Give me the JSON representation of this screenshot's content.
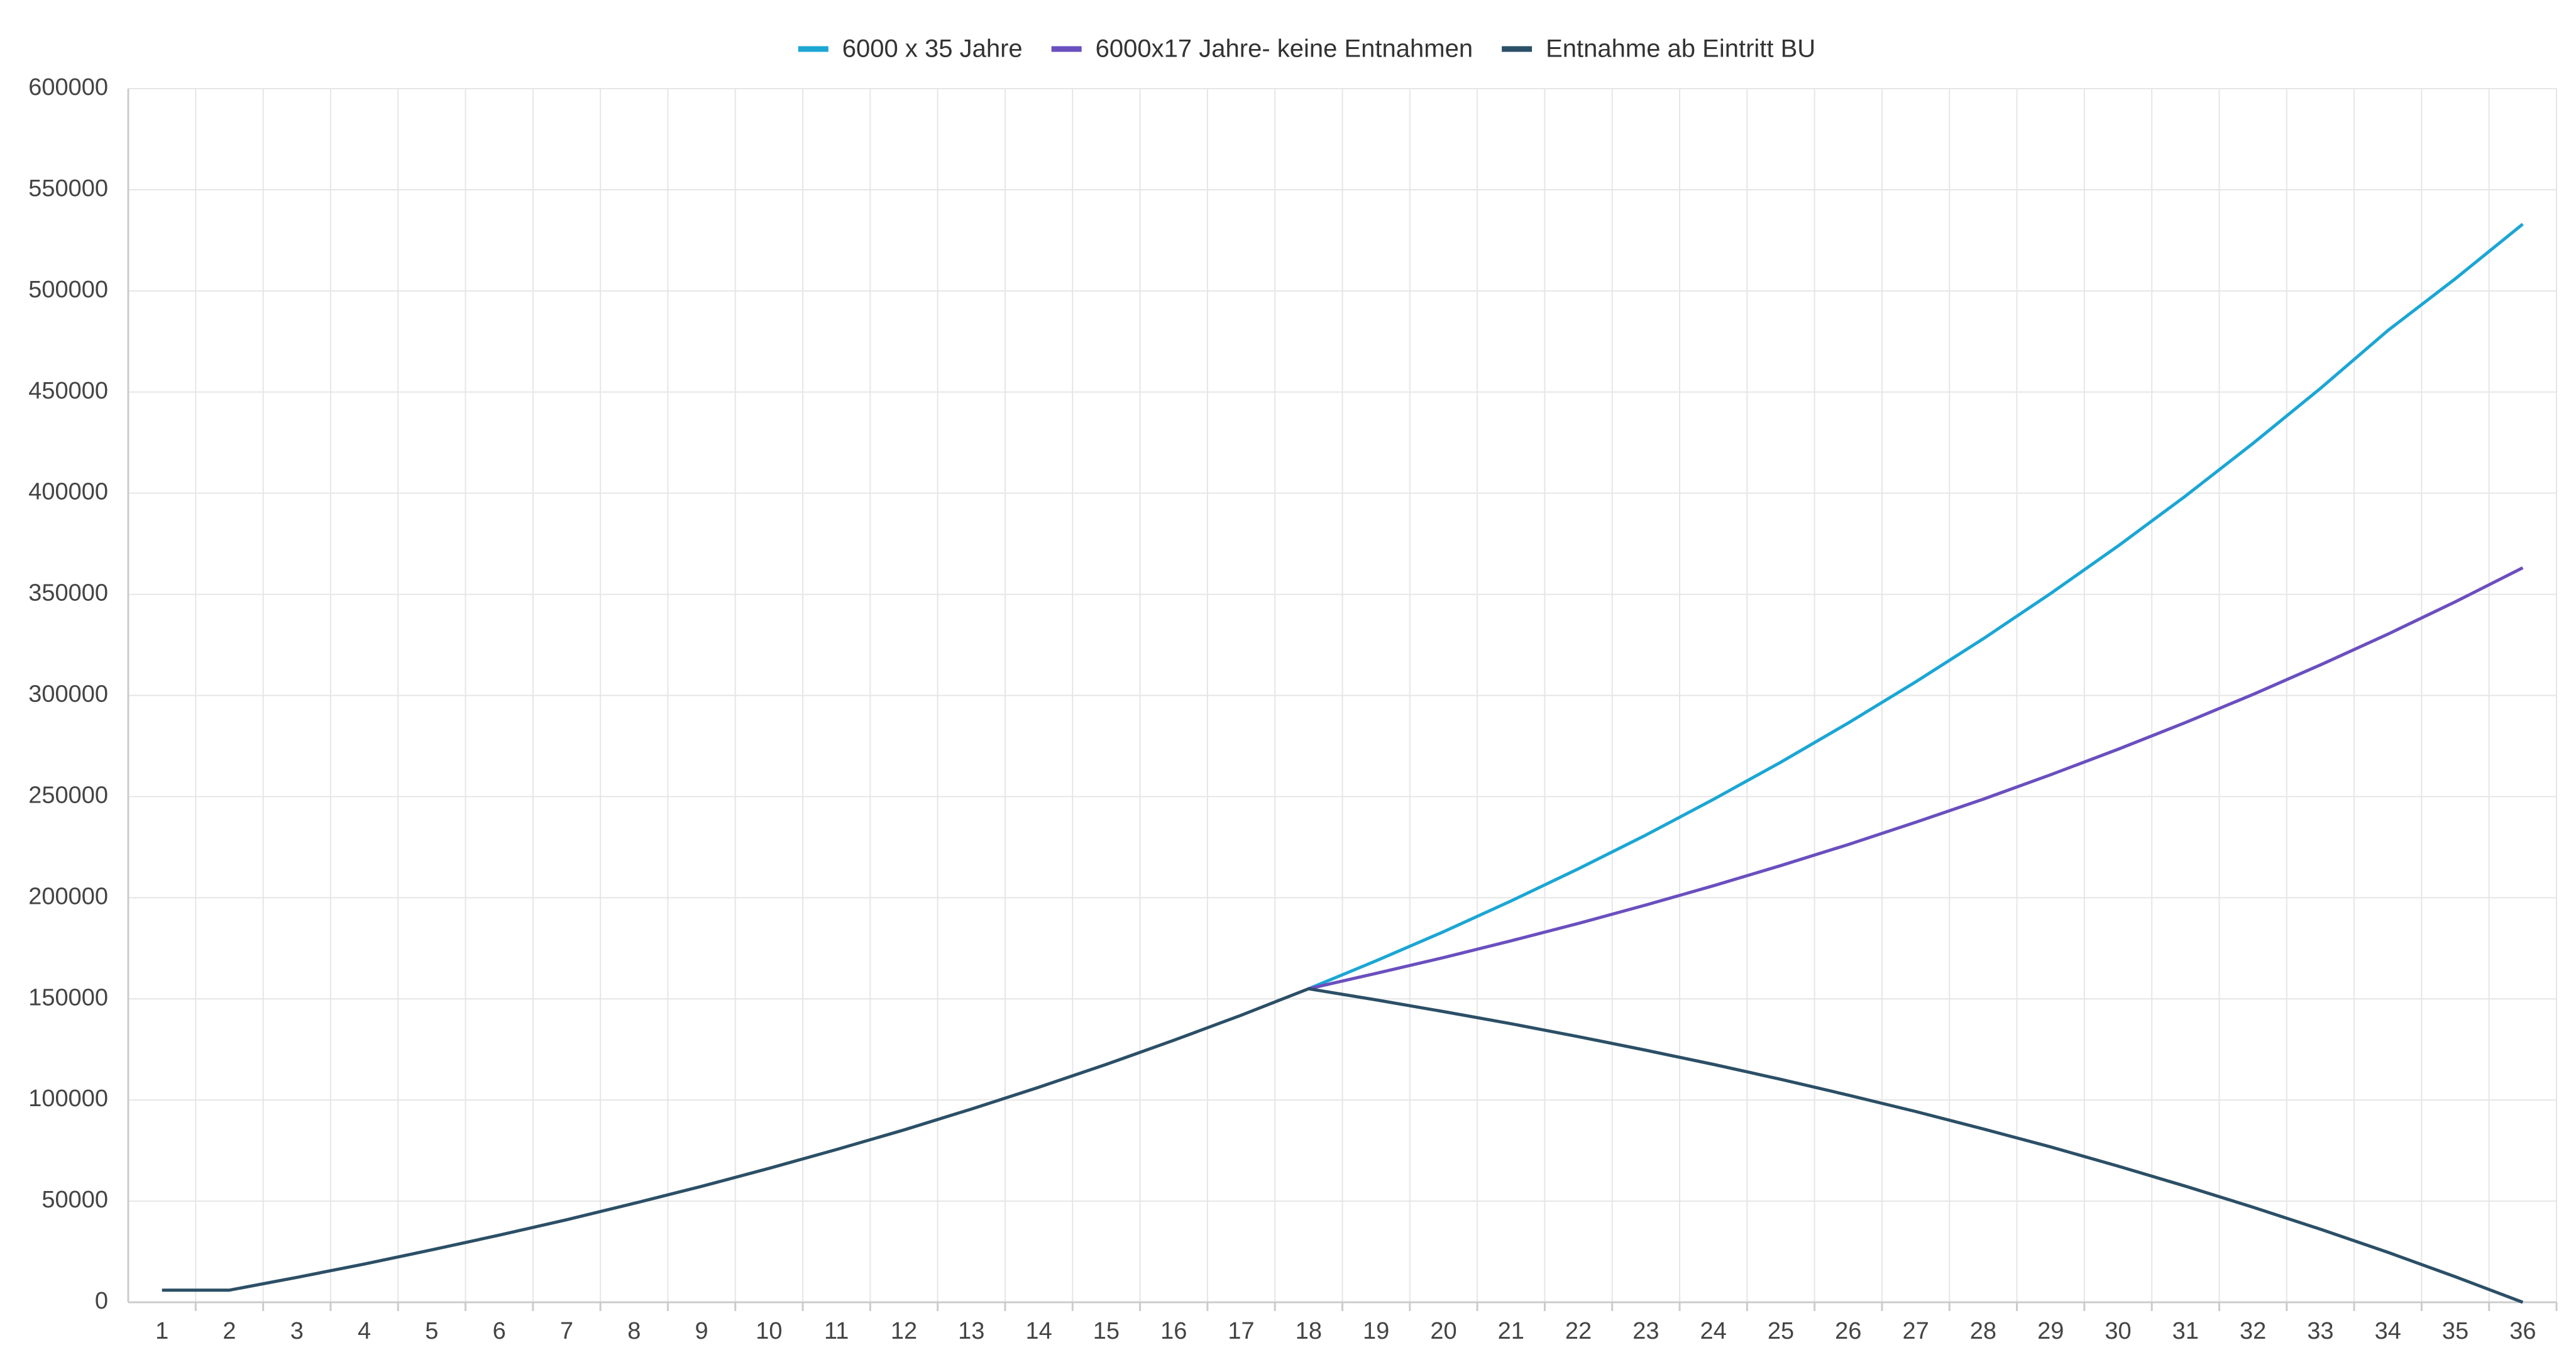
{
  "chart_data": {
    "type": "line",
    "categories": [
      "1",
      "2",
      "3",
      "4",
      "5",
      "6",
      "7",
      "8",
      "9",
      "10",
      "11",
      "12",
      "13",
      "14",
      "15",
      "16",
      "17",
      "18",
      "19",
      "20",
      "21",
      "22",
      "23",
      "24",
      "25",
      "26",
      "27",
      "28",
      "29",
      "30",
      "31",
      "32",
      "33",
      "34",
      "35",
      "36"
    ],
    "series": [
      {
        "name": "6000 x 35 Jahre",
        "color": "#1ba6d4",
        "values": [
          null,
          null,
          null,
          null,
          null,
          null,
          null,
          null,
          null,
          null,
          null,
          null,
          null,
          null,
          null,
          null,
          null,
          155000,
          168800,
          183200,
          198400,
          214300,
          231000,
          248600,
          267000,
          286400,
          306700,
          328000,
          350400,
          373900,
          398600,
          424600,
          451800,
          480400,
          506000,
          533000
        ]
      },
      {
        "name": "6000x17 Jahre- keine Entnahmen",
        "color": "#6a4fbf",
        "values": [
          null,
          null,
          null,
          null,
          null,
          null,
          null,
          null,
          null,
          null,
          null,
          null,
          null,
          null,
          null,
          null,
          null,
          155000,
          162600,
          170400,
          178700,
          187300,
          196400,
          205900,
          215900,
          226300,
          237300,
          248700,
          260800,
          273400,
          286600,
          300500,
          315100,
          330300,
          346300,
          363100
        ]
      },
      {
        "name": "Entnahme ab Eintritt BU",
        "color": "#2b4f66",
        "values": [
          6000,
          6000,
          12300,
          18900,
          25900,
          33200,
          40800,
          48900,
          57300,
          66200,
          75500,
          85200,
          95500,
          106300,
          117600,
          129500,
          141900,
          155000,
          149500,
          143700,
          137700,
          131300,
          124600,
          117600,
          110200,
          102400,
          94300,
          85700,
          76800,
          67300,
          57400,
          47000,
          36100,
          24700,
          12600,
          0
        ]
      }
    ],
    "ylim": [
      0,
      600000
    ],
    "yticks": [
      0,
      50000,
      100000,
      150000,
      200000,
      250000,
      300000,
      350000,
      400000,
      450000,
      500000,
      550000,
      600000
    ],
    "grid": true,
    "legend": "top"
  }
}
